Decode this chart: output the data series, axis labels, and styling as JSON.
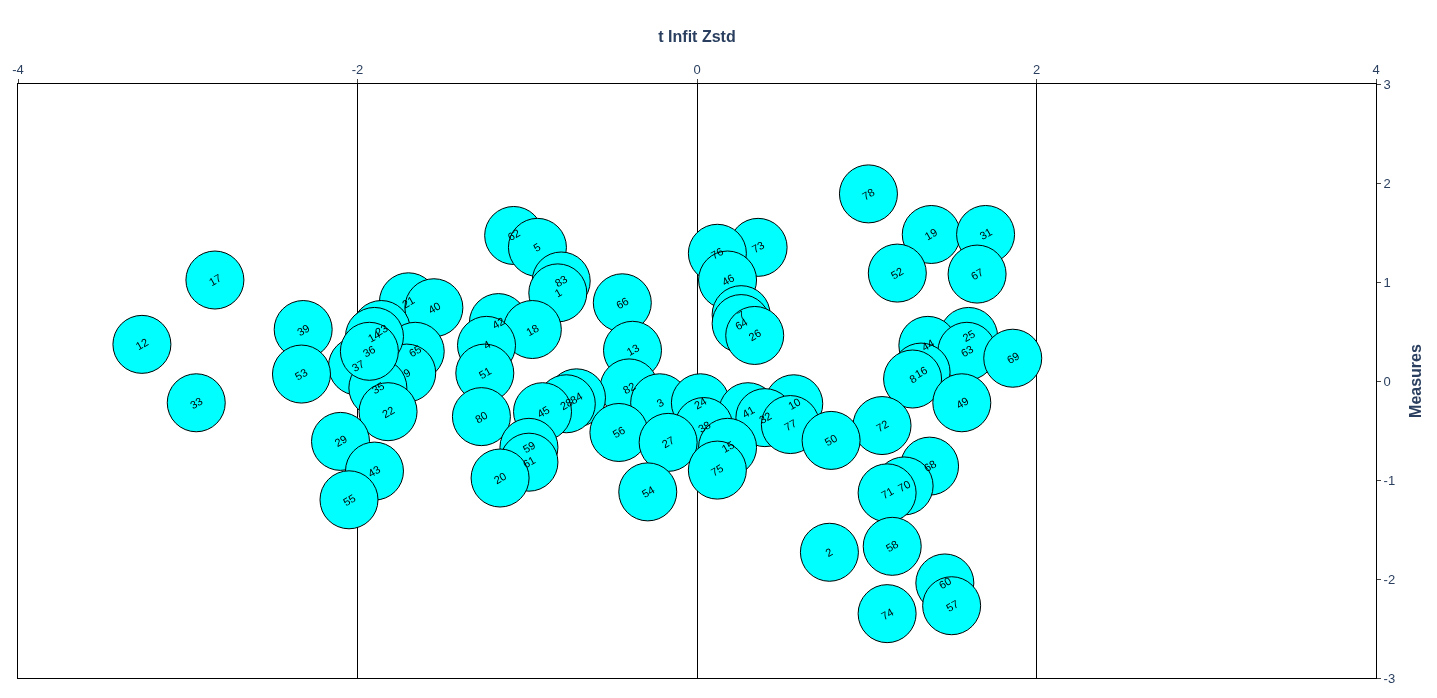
{
  "chart_data": {
    "type": "scatter",
    "xlabel": "t Infit Zstd",
    "ylabel": "Measures",
    "xlim": [
      -4,
      4
    ],
    "xticks": [
      -4,
      -2,
      0,
      2,
      4
    ],
    "ylim": [
      -3,
      3
    ],
    "yticks": [
      -3,
      -2,
      -1,
      0,
      1,
      2,
      3
    ],
    "grid": "x",
    "marker": "circle",
    "series": [
      {
        "color": "#00ffff",
        "x": [
          1.01,
          1.38,
          1.7,
          -1.08,
          -0.94,
          0.36,
          0.12,
          1.18,
          1.65,
          -2.84,
          0.18,
          -0.8,
          -0.82,
          -1.7,
          -0.44,
          -1.55,
          0.26,
          -1.17,
          0.26,
          -0.97,
          -1.86,
          -2.32,
          0.34,
          1.6,
          -3.27,
          -1.24,
          1.36,
          -0.38,
          1.59,
          -1.66,
          1.86,
          -2.0,
          1.32,
          -1.71,
          -1.25,
          -2.33,
          1.27,
          -0.4,
          -1.88,
          -0.71,
          -0.22,
          0.02,
          -2.95,
          1.56,
          0.57,
          -0.77,
          -1.82,
          0.3,
          -0.91,
          -1.27,
          0.4,
          0.55,
          1.09,
          0.04,
          -0.46,
          0.79,
          -2.1,
          -0.17,
          0.18,
          -0.99,
          -0.99,
          1.37,
          0.12,
          -1.9,
          -1.16,
          1.22,
          -0.29,
          1.12,
          -2.05,
          1.15,
          0.78,
          1.46,
          1.5,
          1.12,
          -1.9,
          -1.93
        ],
        "values": [
          1.89,
          1.48,
          1.48,
          1.47,
          1.35,
          1.35,
          1.29,
          1.09,
          1.08,
          1.02,
          1.02,
          1.01,
          0.89,
          0.8,
          0.79,
          0.74,
          0.67,
          0.59,
          0.58,
          0.52,
          0.52,
          0.52,
          0.46,
          0.45,
          0.37,
          0.36,
          0.36,
          0.31,
          0.3,
          0.3,
          0.23,
          0.15,
          0.09,
          0.08,
          0.08,
          0.07,
          0.02,
          -0.07,
          -0.07,
          -0.17,
          -0.22,
          -0.22,
          -0.22,
          -0.22,
          -0.23,
          -0.23,
          -0.31,
          -0.31,
          -0.31,
          -0.36,
          -0.37,
          -0.44,
          -0.45,
          -0.46,
          -0.52,
          -0.6,
          -0.61,
          -0.62,
          -0.67,
          -0.67,
          -0.82,
          -0.86,
          -0.9,
          -0.91,
          -0.98,
          -1.06,
          -1.12,
          -1.13,
          -1.2,
          -1.67,
          -1.73,
          -2.04,
          -2.27,
          -2.35,
          0.45,
          0.3
        ]
      }
    ],
    "annotations": [
      {
        "text": "78",
        "x": 1.01,
        "y": 1.89
      },
      {
        "text": "19",
        "x": 1.38,
        "y": 1.48
      },
      {
        "text": "31",
        "x": 1.7,
        "y": 1.48
      },
      {
        "text": "62",
        "x": -1.08,
        "y": 1.47
      },
      {
        "text": "5",
        "x": -0.94,
        "y": 1.35
      },
      {
        "text": "73",
        "x": 0.36,
        "y": 1.35
      },
      {
        "text": "76",
        "x": 0.12,
        "y": 1.29
      },
      {
        "text": "52",
        "x": 1.18,
        "y": 1.09
      },
      {
        "text": "67",
        "x": 1.65,
        "y": 1.08
      },
      {
        "text": "17",
        "x": -2.84,
        "y": 1.02
      },
      {
        "text": "46",
        "x": 0.18,
        "y": 1.02
      },
      {
        "text": "83",
        "x": -0.8,
        "y": 1.01
      },
      {
        "text": "1",
        "x": -0.82,
        "y": 0.89
      },
      {
        "text": "21",
        "x": -1.7,
        "y": 0.8
      },
      {
        "text": "66",
        "x": -0.44,
        "y": 0.79
      },
      {
        "text": "40",
        "x": -1.55,
        "y": 0.74
      },
      {
        "text": "7",
        "x": 0.26,
        "y": 0.67
      },
      {
        "text": "42",
        "x": -1.17,
        "y": 0.59
      },
      {
        "text": "64",
        "x": 0.26,
        "y": 0.58
      },
      {
        "text": "18",
        "x": -0.97,
        "y": 0.52
      },
      {
        "text": "23",
        "x": -1.86,
        "y": 0.52
      },
      {
        "text": "39",
        "x": -2.32,
        "y": 0.52
      },
      {
        "text": "26",
        "x": 0.34,
        "y": 0.46
      },
      {
        "text": "14",
        "x": -1.9,
        "y": 0.45
      },
      {
        "text": "25",
        "x": 1.6,
        "y": 0.45
      },
      {
        "text": "12",
        "x": -3.27,
        "y": 0.37
      },
      {
        "text": "4",
        "x": -1.24,
        "y": 0.36
      },
      {
        "text": "44",
        "x": 1.36,
        "y": 0.36
      },
      {
        "text": "13",
        "x": -0.38,
        "y": 0.31
      },
      {
        "text": "36",
        "x": -1.93,
        "y": 0.3
      },
      {
        "text": "63",
        "x": 1.59,
        "y": 0.3
      },
      {
        "text": "65",
        "x": -1.66,
        "y": 0.3
      },
      {
        "text": "69",
        "x": 1.86,
        "y": 0.23
      },
      {
        "text": "37",
        "x": -2.0,
        "y": 0.15
      },
      {
        "text": "16",
        "x": 1.32,
        "y": 0.09
      },
      {
        "text": "9",
        "x": -1.71,
        "y": 0.08
      },
      {
        "text": "51",
        "x": -1.25,
        "y": 0.08
      },
      {
        "text": "53",
        "x": -2.33,
        "y": 0.07
      },
      {
        "text": "8",
        "x": 1.27,
        "y": 0.02
      },
      {
        "text": "82",
        "x": -0.4,
        "y": -0.07
      },
      {
        "text": "35",
        "x": -1.88,
        "y": -0.07
      },
      {
        "text": "84",
        "x": -0.71,
        "y": -0.17
      },
      {
        "text": "3",
        "x": -0.22,
        "y": -0.22
      },
      {
        "text": "24",
        "x": 0.02,
        "y": -0.22
      },
      {
        "text": "33",
        "x": -2.95,
        "y": -0.22
      },
      {
        "text": "49",
        "x": 1.56,
        "y": -0.22
      },
      {
        "text": "10",
        "x": 0.57,
        "y": -0.23
      },
      {
        "text": "28",
        "x": -0.77,
        "y": -0.23
      },
      {
        "text": "22",
        "x": -1.82,
        "y": -0.31
      },
      {
        "text": "41",
        "x": 0.3,
        "y": -0.31
      },
      {
        "text": "45",
        "x": -0.91,
        "y": -0.31
      },
      {
        "text": "80",
        "x": -1.27,
        "y": -0.36
      },
      {
        "text": "32",
        "x": 0.4,
        "y": -0.37
      },
      {
        "text": "77",
        "x": 0.55,
        "y": -0.44
      },
      {
        "text": "72",
        "x": 1.09,
        "y": -0.45
      },
      {
        "text": "38",
        "x": 0.04,
        "y": -0.46
      },
      {
        "text": "56",
        "x": -0.46,
        "y": -0.52
      },
      {
        "text": "50",
        "x": 0.79,
        "y": -0.6
      },
      {
        "text": "29",
        "x": -2.1,
        "y": -0.61
      },
      {
        "text": "27",
        "x": -0.17,
        "y": -0.62
      },
      {
        "text": "15",
        "x": 0.18,
        "y": -0.67
      },
      {
        "text": "59",
        "x": -0.99,
        "y": -0.67
      },
      {
        "text": "61",
        "x": -0.99,
        "y": -0.82
      },
      {
        "text": "68",
        "x": 1.37,
        "y": -0.86
      },
      {
        "text": "75",
        "x": 0.12,
        "y": -0.9
      },
      {
        "text": "43",
        "x": -1.9,
        "y": -0.91
      },
      {
        "text": "20",
        "x": -1.16,
        "y": -0.98
      },
      {
        "text": "70",
        "x": 1.22,
        "y": -1.06
      },
      {
        "text": "54",
        "x": -0.29,
        "y": -1.12
      },
      {
        "text": "71",
        "x": 1.12,
        "y": -1.13
      },
      {
        "text": "55",
        "x": -2.05,
        "y": -1.2
      },
      {
        "text": "58",
        "x": 1.15,
        "y": -1.67
      },
      {
        "text": "2",
        "x": 0.78,
        "y": -1.73
      },
      {
        "text": "60",
        "x": 1.46,
        "y": -2.04
      },
      {
        "text": "57",
        "x": 1.5,
        "y": -2.27
      },
      {
        "text": "74",
        "x": 1.12,
        "y": -2.35
      }
    ]
  }
}
